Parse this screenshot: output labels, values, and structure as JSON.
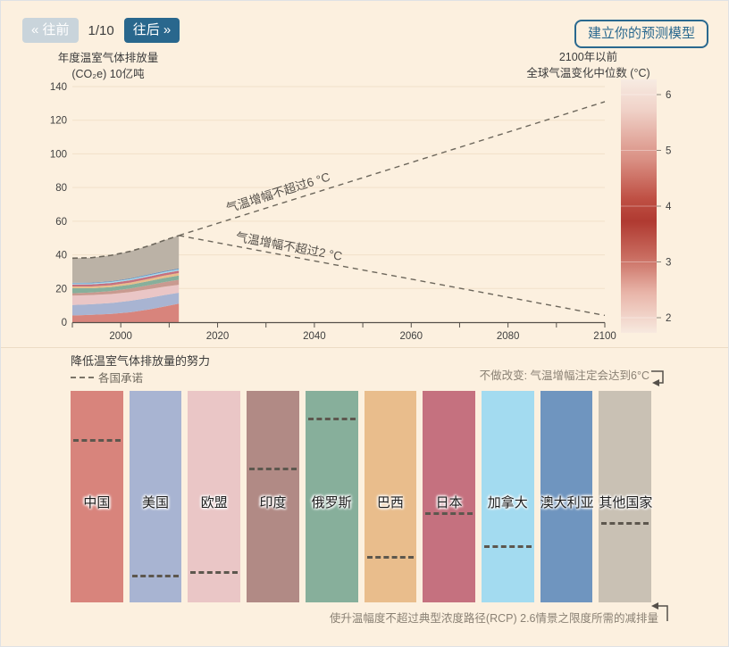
{
  "nav": {
    "prev_label": "« 往前",
    "counter": "1/10",
    "next_label": "往后 »",
    "model_button": "建立你的预测模型"
  },
  "chart_titles": {
    "left_line1": "年度温室气体排放量",
    "left_line2": "(CO₂e) 10亿吨",
    "right_line1": "2100年以前",
    "right_line2": "全球气温变化中位数 (°C)"
  },
  "chart_data": {
    "type": "area",
    "title": "年度温室气体排放量 (CO₂e) 10亿吨",
    "x": [
      1990,
      1994,
      1998,
      2002,
      2006,
      2009,
      2012
    ],
    "series": [
      {
        "name": "中国",
        "color": "#d8847c",
        "values": [
          4.0,
          4.4,
          4.9,
          5.9,
          7.6,
          9.3,
          11.0
        ]
      },
      {
        "name": "美国",
        "color": "#a8b4d2",
        "values": [
          6.2,
          6.3,
          6.5,
          6.8,
          6.9,
          6.8,
          6.5
        ]
      },
      {
        "name": "欧盟",
        "color": "#eac6c6",
        "values": [
          5.6,
          5.4,
          5.3,
          5.2,
          5.2,
          5.0,
          4.7
        ]
      },
      {
        "name": "印度",
        "color": "#c99a90",
        "values": [
          1.4,
          1.55,
          1.8,
          2.1,
          2.4,
          2.7,
          3.0
        ]
      },
      {
        "name": "俄罗斯",
        "color": "#87af9b",
        "values": [
          3.0,
          2.5,
          2.3,
          2.3,
          2.4,
          2.45,
          2.5
        ]
      },
      {
        "name": "巴西",
        "color": "#e9bd8c",
        "values": [
          1.0,
          1.05,
          1.15,
          1.25,
          1.35,
          1.45,
          1.5
        ]
      },
      {
        "name": "日本",
        "color": "#c5717f",
        "values": [
          1.2,
          1.25,
          1.3,
          1.35,
          1.4,
          1.4,
          1.4
        ]
      },
      {
        "name": "加拿大",
        "color": "#a3dbf0",
        "values": [
          0.6,
          0.63,
          0.67,
          0.71,
          0.74,
          0.75,
          0.75
        ]
      },
      {
        "name": "澳大利亚",
        "color": "#6f95bf",
        "values": [
          0.4,
          0.44,
          0.48,
          0.52,
          0.56,
          0.58,
          0.6
        ]
      },
      {
        "name": "其他国家",
        "color": "#bbb2a6",
        "values": [
          14.6,
          14.8,
          15.3,
          16.0,
          17.0,
          18.2,
          19.5
        ]
      }
    ],
    "historical_total_dashed": true,
    "projections": [
      {
        "label": "气温增幅不超过6 °C",
        "from": [
          2012,
          51.5
        ],
        "to": [
          2100,
          131
        ],
        "t": 0.12,
        "dy": -8
      },
      {
        "label": "气温增幅不超过2 °C",
        "from": [
          2012,
          51.5
        ],
        "to": [
          2100,
          4
        ],
        "t": 0.13,
        "dy": -6
      }
    ],
    "xlim": [
      1990,
      2100
    ],
    "ylim": [
      0,
      140
    ],
    "y_ticks": [
      0,
      20,
      40,
      60,
      80,
      100,
      120,
      140
    ],
    "x_minor_step": 10,
    "x_tick_labels": [
      2000,
      2020,
      2040,
      2060,
      2080,
      2100
    ],
    "grid": true,
    "color_scale": {
      "min": 2,
      "max": 6,
      "ticks": [
        6,
        5,
        4,
        3,
        2
      ],
      "gradient": [
        "#f7ebe2",
        "#f0d2c8",
        "#d98e82",
        "#bf5044",
        "#b03a31",
        "#c96c60",
        "#e8b4a8",
        "#f7e9df"
      ],
      "gradient_pos": [
        0,
        0.12,
        0.32,
        0.47,
        0.56,
        0.7,
        0.84,
        1
      ]
    }
  },
  "bottom": {
    "title": "降低温室气体排放量的努力",
    "legend_label": "各国承诺",
    "note_no_change": "不做改变: 气温增幅注定会达到6°C",
    "note_rcp": "使升温幅度不超过典型浓度路径(RCP) 2.6情景之限度所需的减排量",
    "bars": [
      {
        "label": "中国",
        "color": "#d8847c",
        "pledge": 0.228
      },
      {
        "label": "美国",
        "color": "#a8b4d2",
        "pledge": 0.869
      },
      {
        "label": "欧盟",
        "color": "#eac6c6",
        "pledge": 0.852
      },
      {
        "label": "印度",
        "color": "#b18a85",
        "pledge": 0.363
      },
      {
        "label": "俄罗斯",
        "color": "#87af9b",
        "pledge": 0.127
      },
      {
        "label": "巴西",
        "color": "#e9bd8c",
        "pledge": 0.781
      },
      {
        "label": "日本",
        "color": "#c5717f",
        "pledge": 0.574
      },
      {
        "label": "加拿大",
        "color": "#a3dbf0",
        "pledge": 0.73
      },
      {
        "label": "澳大利亚",
        "color": "#6f95bf",
        "pledge": null
      },
      {
        "label": "其他国家",
        "color": "#c9c1b4",
        "pledge": 0.62
      }
    ]
  },
  "colors": {
    "accent_blue": "#29678d",
    "background": "#fcf0df",
    "dashed_line": "#6d675c",
    "note_gray": "#8a8174"
  }
}
